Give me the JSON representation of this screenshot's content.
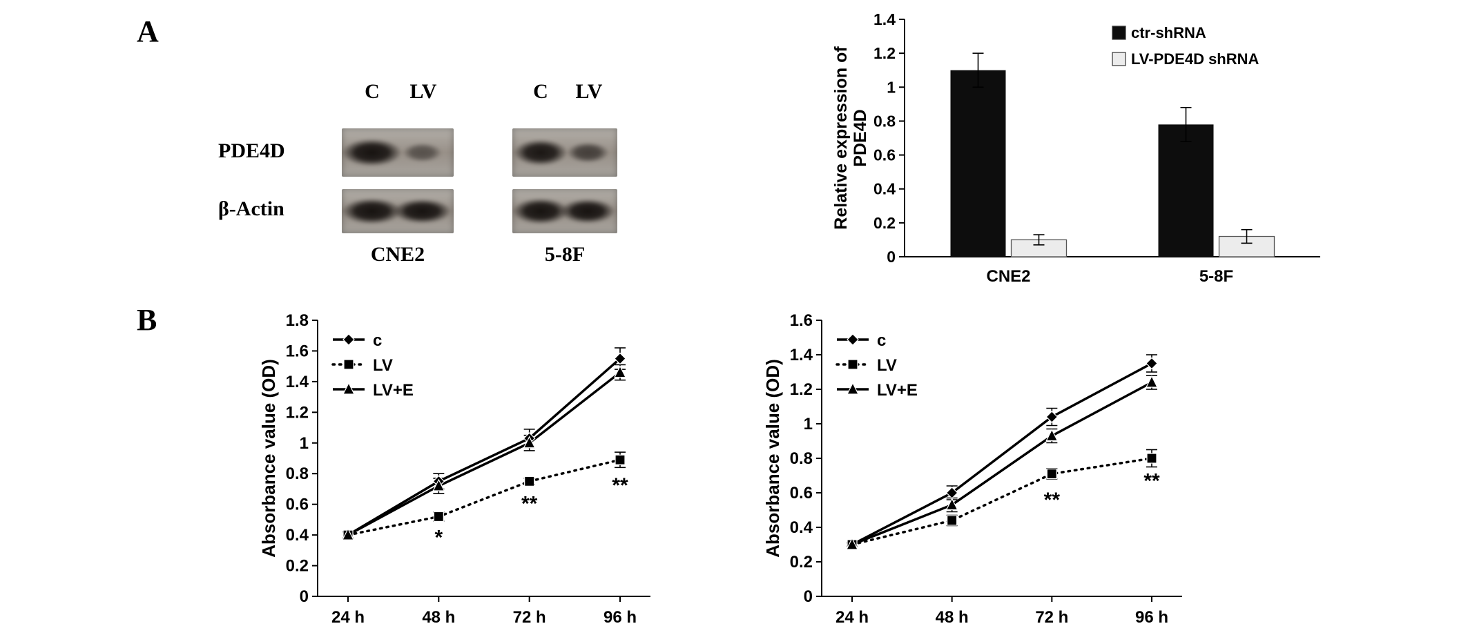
{
  "figure": {
    "panel_labels": [
      "A",
      "B"
    ]
  },
  "blot": {
    "row_labels": [
      "PDE4D",
      "β-Actin"
    ],
    "groups": [
      {
        "name": "CNE2",
        "lanes": [
          "C",
          "LV"
        ]
      },
      {
        "name": "5-8F",
        "lanes": [
          "C",
          "LV"
        ]
      }
    ],
    "band_intensity": [
      [
        [
          1.0,
          0.32
        ],
        [
          0.9,
          0.5
        ]
      ],
      [
        [
          1.0,
          0.95
        ],
        [
          1.0,
          0.95
        ]
      ]
    ]
  },
  "chart_data": [
    {
      "id": "pde4d-expression-bar",
      "type": "bar",
      "ylabel": "Relative expression of PDE4D",
      "ylabel_lines": [
        "Relative expression of",
        "PDE4D"
      ],
      "categories": [
        "CNE2",
        "5-8F"
      ],
      "series": [
        {
          "name": "ctr-shRNA",
          "values": [
            1.1,
            0.78
          ],
          "errors": [
            0.1,
            0.1
          ],
          "fill": "#0d0d0d"
        },
        {
          "name": "LV-PDE4D shRNA",
          "values": [
            0.1,
            0.12
          ],
          "errors": [
            0.03,
            0.04
          ],
          "fill": "#ececec"
        }
      ],
      "ylim": [
        0,
        1.4
      ],
      "ytick_step": 0.2,
      "grid": false,
      "legend_position": "top-right"
    },
    {
      "id": "cne2-proliferation",
      "type": "line",
      "ylabel": "Absorbance value (OD)",
      "categories": [
        "24 h",
        "48 h",
        "72 h",
        "96 h"
      ],
      "ylim": [
        0,
        1.8
      ],
      "ytick_step": 0.2,
      "grid": false,
      "legend_position": "top-left",
      "series": [
        {
          "name": "c",
          "marker": "diamond",
          "dash": "solid",
          "values": [
            0.4,
            0.75,
            1.03,
            1.55
          ],
          "errors": [
            0.02,
            0.05,
            0.06,
            0.07
          ]
        },
        {
          "name": "LV",
          "marker": "square",
          "dash": "dotted",
          "values": [
            0.4,
            0.52,
            0.75,
            0.89
          ],
          "errors": [
            0.02,
            0.03,
            0.02,
            0.05
          ]
        },
        {
          "name": "LV+E",
          "marker": "triangle",
          "dash": "solid",
          "values": [
            0.4,
            0.72,
            1.0,
            1.46
          ],
          "errors": [
            0.02,
            0.05,
            0.05,
            0.05
          ]
        }
      ],
      "annotations": [
        {
          "x_index": 1,
          "text": "*",
          "y": 0.34
        },
        {
          "x_index": 2,
          "text": "**",
          "y": 0.56
        },
        {
          "x_index": 3,
          "text": "**",
          "y": 0.68
        }
      ]
    },
    {
      "id": "f58-proliferation",
      "type": "line",
      "ylabel": "Absorbance value (OD)",
      "categories": [
        "24 h",
        "48 h",
        "72 h",
        "96 h"
      ],
      "ylim": [
        0,
        1.6
      ],
      "ytick_step": 0.2,
      "grid": false,
      "legend_position": "top-left",
      "series": [
        {
          "name": "c",
          "marker": "diamond",
          "dash": "solid",
          "values": [
            0.3,
            0.6,
            1.04,
            1.35
          ],
          "errors": [
            0.01,
            0.04,
            0.05,
            0.05
          ]
        },
        {
          "name": "LV",
          "marker": "square",
          "dash": "dotted",
          "values": [
            0.3,
            0.44,
            0.71,
            0.8
          ],
          "errors": [
            0.01,
            0.03,
            0.03,
            0.05
          ]
        },
        {
          "name": "LV+E",
          "marker": "triangle",
          "dash": "solid",
          "values": [
            0.3,
            0.53,
            0.93,
            1.24
          ],
          "errors": [
            0.01,
            0.04,
            0.04,
            0.04
          ]
        }
      ],
      "annotations": [
        {
          "x_index": 2,
          "text": "**",
          "y": 0.52
        },
        {
          "x_index": 3,
          "text": "**",
          "y": 0.63
        }
      ]
    }
  ]
}
